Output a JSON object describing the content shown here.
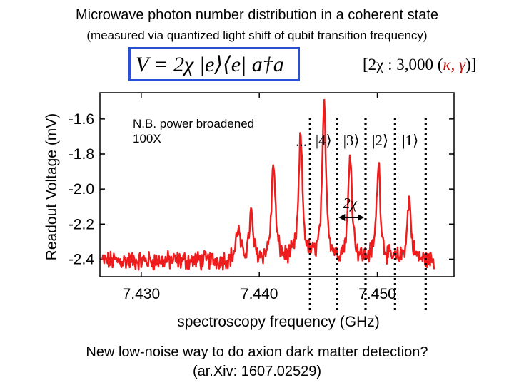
{
  "header": {
    "title": "Microwave photon number distribution in a coherent state",
    "subtitle": "(measured via quantized light shift of qubit transition frequency)"
  },
  "equation": {
    "hamiltonian": "V = 2χ |e⟩⟨e| a†a",
    "aside_prefix": "[2χ : 3,000 (",
    "aside_kappa": "κ, γ",
    "aside_suffix": ")]"
  },
  "annotations": {
    "note_line1": "N.B. power broadened",
    "note_line2": "100X",
    "ellipsis": "...",
    "spacing_label": "2χ",
    "state_labels": [
      "|4⟩",
      "|3⟩",
      "|2⟩",
      "|1⟩"
    ],
    "state_markers_ghz": [
      7.4443,
      7.4466,
      7.449,
      7.4515,
      7.4541
    ]
  },
  "footer": {
    "line1": "New low-noise way to do axion dark matter detection?",
    "line2": "(ar.Xiv: 1607.02529)"
  },
  "chart_data": {
    "type": "line",
    "xlabel": "spectroscopy frequency (GHz)",
    "ylabel": "Readout Voltage (mV)",
    "xlim": [
      7.4265,
      7.4565
    ],
    "ylim": [
      -2.5,
      -1.45
    ],
    "x_ticks": [
      7.43,
      7.44,
      7.45
    ],
    "x_tick_labels": [
      "7.430",
      "7.440",
      "7.450"
    ],
    "y_ticks": [
      -1.6,
      -1.8,
      -2.0,
      -2.2,
      -2.4
    ],
    "y_tick_labels": [
      "-1.6",
      "-1.8",
      "-2.0",
      "-2.2",
      "-2.4"
    ],
    "grid": false,
    "series_color": "#ee1c1c",
    "baseline_mv": -2.41,
    "peaks": [
      {
        "x": 7.4382,
        "y": -2.23
      },
      {
        "x": 7.4393,
        "y": -2.15
      },
      {
        "x": 7.4412,
        "y": -1.85
      },
      {
        "x": 7.4435,
        "y": -1.7
      },
      {
        "x": 7.4455,
        "y": -1.53
      },
      {
        "x": 7.4477,
        "y": -1.79
      },
      {
        "x": 7.4501,
        "y": -1.85
      },
      {
        "x": 7.4527,
        "y": -2.06
      }
    ]
  }
}
